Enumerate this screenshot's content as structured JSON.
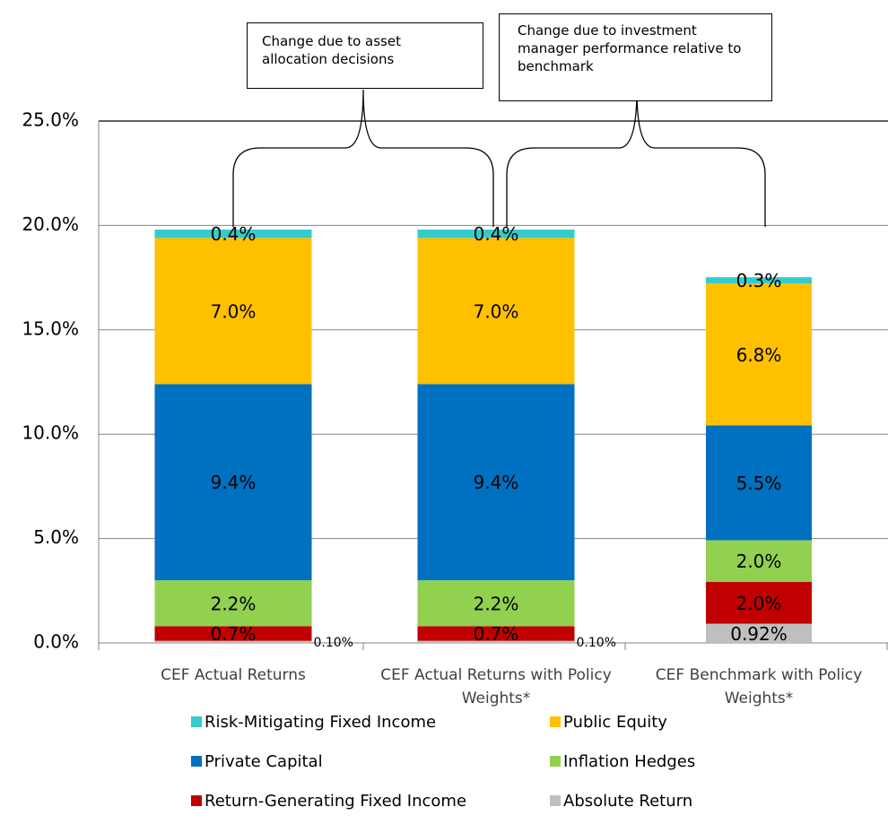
{
  "chart_data": {
    "type": "stacked_bar",
    "annotations": [
      "Change due to asset allocation decisions",
      "Change due to investment manager performance relative to benchmark"
    ],
    "categories": [
      "CEF Actual Returns",
      "CEF Actual Returns with Policy Weights*",
      "CEF Benchmark with Policy Weights*"
    ],
    "series": [
      {
        "name": "Absolute Return",
        "color": "#BFBFBF",
        "values": [
          0.1,
          0.1,
          0.92
        ],
        "value_labels": [
          "0.10%",
          "0.10%",
          "0.92%"
        ]
      },
      {
        "name": "Return-Generating Fixed Income",
        "color": "#C00000",
        "values": [
          0.7,
          0.7,
          2.0
        ],
        "value_labels": [
          "0.7%",
          "0.7%",
          "2.0%"
        ]
      },
      {
        "name": "Inflation Hedges",
        "color": "#92D050",
        "values": [
          2.2,
          2.2,
          2.0
        ],
        "value_labels": [
          "2.2%",
          "2.2%",
          "2.0%"
        ]
      },
      {
        "name": "Private Capital",
        "color": "#0070C0",
        "values": [
          9.4,
          9.4,
          5.5
        ],
        "value_labels": [
          "9.4%",
          "9.4%",
          "5.5%"
        ]
      },
      {
        "name": "Public Equity",
        "color": "#FFC000",
        "values": [
          7.0,
          7.0,
          6.8
        ],
        "value_labels": [
          "7.0%",
          "7.0%",
          "6.8%"
        ]
      },
      {
        "name": "Risk-Mitigating Fixed Income",
        "color": "#33CCCC",
        "values": [
          0.4,
          0.4,
          0.3
        ],
        "value_labels": [
          "0.4%",
          "0.4%",
          "0.3%"
        ]
      }
    ],
    "ylim": [
      0,
      25
    ],
    "yticks": [
      {
        "value": 0,
        "label": "0.0%"
      },
      {
        "value": 5,
        "label": "5.0%"
      },
      {
        "value": 10,
        "label": "10.0%"
      },
      {
        "value": 15,
        "label": "15.0%"
      },
      {
        "value": 20,
        "label": "20.0%"
      },
      {
        "value": 25,
        "label": "25.0%"
      }
    ],
    "grid": true
  }
}
